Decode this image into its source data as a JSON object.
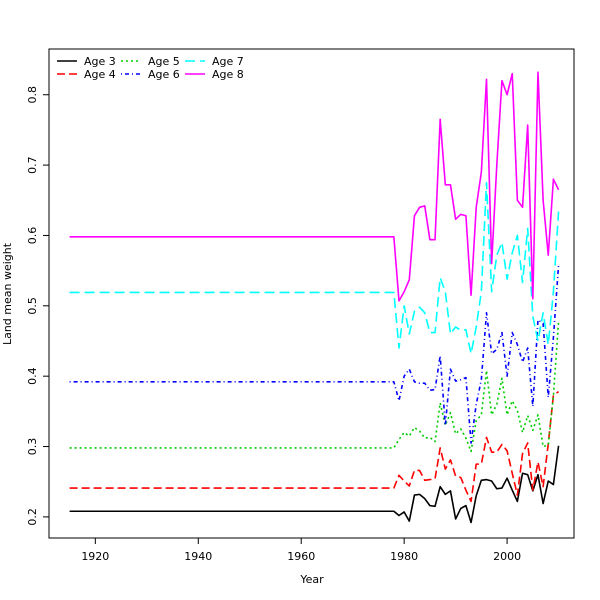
{
  "chart_data": {
    "type": "line",
    "title": "",
    "xlabel": "Year",
    "ylabel": "Land mean weight",
    "xlim": [
      1911,
      2013
    ],
    "ylim": [
      0.17,
      0.865
    ],
    "xticks": [
      1920,
      1940,
      1960,
      1980,
      2000
    ],
    "yticks": [
      0.2,
      0.3,
      0.4,
      0.5,
      0.6,
      0.7,
      0.8
    ],
    "grid": false,
    "legend_position": "top-left",
    "x": [
      1915,
      1916,
      1917,
      1918,
      1919,
      1920,
      1921,
      1922,
      1923,
      1924,
      1925,
      1926,
      1927,
      1928,
      1929,
      1930,
      1931,
      1932,
      1933,
      1934,
      1935,
      1936,
      1937,
      1938,
      1939,
      1940,
      1941,
      1942,
      1943,
      1944,
      1945,
      1946,
      1947,
      1948,
      1949,
      1950,
      1951,
      1952,
      1953,
      1954,
      1955,
      1956,
      1957,
      1958,
      1959,
      1960,
      1961,
      1962,
      1963,
      1964,
      1965,
      1966,
      1967,
      1968,
      1969,
      1970,
      1971,
      1972,
      1973,
      1974,
      1975,
      1976,
      1977,
      1978,
      1979,
      1980,
      1981,
      1982,
      1983,
      1984,
      1985,
      1986,
      1987,
      1988,
      1989,
      1990,
      1991,
      1992,
      1993,
      1994,
      1995,
      1996,
      1997,
      1998,
      1999,
      2000,
      2001,
      2002,
      2003,
      2004,
      2005,
      2006,
      2007,
      2008,
      2009,
      2010
    ],
    "series": [
      {
        "name": "Age 3",
        "color": "#000000",
        "dash": "solid",
        "values": [
          0.208,
          0.208,
          0.208,
          0.208,
          0.208,
          0.208,
          0.208,
          0.208,
          0.208,
          0.208,
          0.208,
          0.208,
          0.208,
          0.208,
          0.208,
          0.208,
          0.208,
          0.208,
          0.208,
          0.208,
          0.208,
          0.208,
          0.208,
          0.208,
          0.208,
          0.208,
          0.208,
          0.208,
          0.208,
          0.208,
          0.208,
          0.208,
          0.208,
          0.208,
          0.208,
          0.208,
          0.208,
          0.208,
          0.208,
          0.208,
          0.208,
          0.208,
          0.208,
          0.208,
          0.208,
          0.208,
          0.208,
          0.208,
          0.208,
          0.208,
          0.208,
          0.208,
          0.208,
          0.208,
          0.208,
          0.208,
          0.208,
          0.208,
          0.208,
          0.208,
          0.208,
          0.208,
          0.208,
          0.208,
          0.202,
          0.207,
          0.194,
          0.231,
          0.232,
          0.226,
          0.216,
          0.215,
          0.243,
          0.232,
          0.237,
          0.197,
          0.212,
          0.216,
          0.192,
          0.23,
          0.252,
          0.253,
          0.251,
          0.24,
          0.241,
          0.255,
          0.238,
          0.222,
          0.262,
          0.26,
          0.237,
          0.26,
          0.219,
          0.251,
          0.246,
          0.301
        ]
      },
      {
        "name": "Age 4",
        "color": "#ff0000",
        "dash": "long",
        "values": [
          0.241,
          0.241,
          0.241,
          0.241,
          0.241,
          0.241,
          0.241,
          0.241,
          0.241,
          0.241,
          0.241,
          0.241,
          0.241,
          0.241,
          0.241,
          0.241,
          0.241,
          0.241,
          0.241,
          0.241,
          0.241,
          0.241,
          0.241,
          0.241,
          0.241,
          0.241,
          0.241,
          0.241,
          0.241,
          0.241,
          0.241,
          0.241,
          0.241,
          0.241,
          0.241,
          0.241,
          0.241,
          0.241,
          0.241,
          0.241,
          0.241,
          0.241,
          0.241,
          0.241,
          0.241,
          0.241,
          0.241,
          0.241,
          0.241,
          0.241,
          0.241,
          0.241,
          0.241,
          0.241,
          0.241,
          0.241,
          0.241,
          0.241,
          0.241,
          0.241,
          0.241,
          0.241,
          0.241,
          0.241,
          0.259,
          0.251,
          0.244,
          0.266,
          0.266,
          0.252,
          0.253,
          0.254,
          0.298,
          0.268,
          0.281,
          0.258,
          0.256,
          0.238,
          0.222,
          0.275,
          0.275,
          0.313,
          0.292,
          0.292,
          0.303,
          0.294,
          0.262,
          0.231,
          0.29,
          0.305,
          0.238,
          0.278,
          0.243,
          0.304,
          0.373,
          0.378
        ]
      },
      {
        "name": "Age 5",
        "color": "#00cd00",
        "dash": "dotted",
        "values": [
          0.298,
          0.298,
          0.298,
          0.298,
          0.298,
          0.298,
          0.298,
          0.298,
          0.298,
          0.298,
          0.298,
          0.298,
          0.298,
          0.298,
          0.298,
          0.298,
          0.298,
          0.298,
          0.298,
          0.298,
          0.298,
          0.298,
          0.298,
          0.298,
          0.298,
          0.298,
          0.298,
          0.298,
          0.298,
          0.298,
          0.298,
          0.298,
          0.298,
          0.298,
          0.298,
          0.298,
          0.298,
          0.298,
          0.298,
          0.298,
          0.298,
          0.298,
          0.298,
          0.298,
          0.298,
          0.298,
          0.298,
          0.298,
          0.298,
          0.298,
          0.298,
          0.298,
          0.298,
          0.298,
          0.298,
          0.298,
          0.298,
          0.298,
          0.298,
          0.298,
          0.298,
          0.298,
          0.298,
          0.298,
          0.31,
          0.32,
          0.315,
          0.327,
          0.322,
          0.312,
          0.313,
          0.307,
          0.362,
          0.33,
          0.348,
          0.318,
          0.325,
          0.312,
          0.293,
          0.337,
          0.345,
          0.408,
          0.345,
          0.36,
          0.397,
          0.345,
          0.365,
          0.351,
          0.32,
          0.344,
          0.323,
          0.345,
          0.3,
          0.302,
          0.372,
          0.478
        ]
      },
      {
        "name": "Age 6",
        "color": "#0000ff",
        "dash": "dashdot",
        "values": [
          0.392,
          0.392,
          0.392,
          0.392,
          0.392,
          0.392,
          0.392,
          0.392,
          0.392,
          0.392,
          0.392,
          0.392,
          0.392,
          0.392,
          0.392,
          0.392,
          0.392,
          0.392,
          0.392,
          0.392,
          0.392,
          0.392,
          0.392,
          0.392,
          0.392,
          0.392,
          0.392,
          0.392,
          0.392,
          0.392,
          0.392,
          0.392,
          0.392,
          0.392,
          0.392,
          0.392,
          0.392,
          0.392,
          0.392,
          0.392,
          0.392,
          0.392,
          0.392,
          0.392,
          0.392,
          0.392,
          0.392,
          0.392,
          0.392,
          0.392,
          0.392,
          0.392,
          0.392,
          0.392,
          0.392,
          0.392,
          0.392,
          0.392,
          0.392,
          0.392,
          0.392,
          0.392,
          0.392,
          0.392,
          0.365,
          0.4,
          0.41,
          0.392,
          0.39,
          0.39,
          0.38,
          0.381,
          0.429,
          0.33,
          0.41,
          0.393,
          0.395,
          0.398,
          0.305,
          0.36,
          0.395,
          0.49,
          0.432,
          0.438,
          0.462,
          0.4,
          0.462,
          0.445,
          0.42,
          0.44,
          0.357,
          0.48,
          0.475,
          0.37,
          0.455,
          0.558
        ]
      },
      {
        "name": "Age 7",
        "color": "#00ffff",
        "dash": "dashed",
        "values": [
          0.519,
          0.519,
          0.519,
          0.519,
          0.519,
          0.519,
          0.519,
          0.519,
          0.519,
          0.519,
          0.519,
          0.519,
          0.519,
          0.519,
          0.519,
          0.519,
          0.519,
          0.519,
          0.519,
          0.519,
          0.519,
          0.519,
          0.519,
          0.519,
          0.519,
          0.519,
          0.519,
          0.519,
          0.519,
          0.519,
          0.519,
          0.519,
          0.519,
          0.519,
          0.519,
          0.519,
          0.519,
          0.519,
          0.519,
          0.519,
          0.519,
          0.519,
          0.519,
          0.519,
          0.519,
          0.519,
          0.519,
          0.519,
          0.519,
          0.519,
          0.519,
          0.519,
          0.519,
          0.519,
          0.519,
          0.519,
          0.519,
          0.519,
          0.519,
          0.519,
          0.519,
          0.519,
          0.519,
          0.519,
          0.44,
          0.5,
          0.46,
          0.492,
          0.498,
          0.49,
          0.462,
          0.462,
          0.54,
          0.52,
          0.46,
          0.47,
          0.465,
          0.466,
          0.432,
          0.47,
          0.52,
          0.675,
          0.52,
          0.572,
          0.59,
          0.538,
          0.575,
          0.6,
          0.533,
          0.61,
          0.485,
          0.45,
          0.49,
          0.445,
          0.52,
          0.634
        ]
      },
      {
        "name": "Age 8",
        "color": "#ff00ff",
        "dash": "solid",
        "values": [
          0.598,
          0.598,
          0.598,
          0.598,
          0.598,
          0.598,
          0.598,
          0.598,
          0.598,
          0.598,
          0.598,
          0.598,
          0.598,
          0.598,
          0.598,
          0.598,
          0.598,
          0.598,
          0.598,
          0.598,
          0.598,
          0.598,
          0.598,
          0.598,
          0.598,
          0.598,
          0.598,
          0.598,
          0.598,
          0.598,
          0.598,
          0.598,
          0.598,
          0.598,
          0.598,
          0.598,
          0.598,
          0.598,
          0.598,
          0.598,
          0.598,
          0.598,
          0.598,
          0.598,
          0.598,
          0.598,
          0.598,
          0.598,
          0.598,
          0.598,
          0.598,
          0.598,
          0.598,
          0.598,
          0.598,
          0.598,
          0.598,
          0.598,
          0.598,
          0.598,
          0.598,
          0.598,
          0.598,
          0.598,
          0.507,
          0.52,
          0.537,
          0.628,
          0.64,
          0.642,
          0.594,
          0.594,
          0.765,
          0.672,
          0.672,
          0.623,
          0.63,
          0.628,
          0.515,
          0.64,
          0.69,
          0.822,
          0.56,
          0.7,
          0.82,
          0.8,
          0.83,
          0.65,
          0.64,
          0.757,
          0.51,
          0.832,
          0.65,
          0.572,
          0.68,
          0.665
        ]
      }
    ]
  }
}
